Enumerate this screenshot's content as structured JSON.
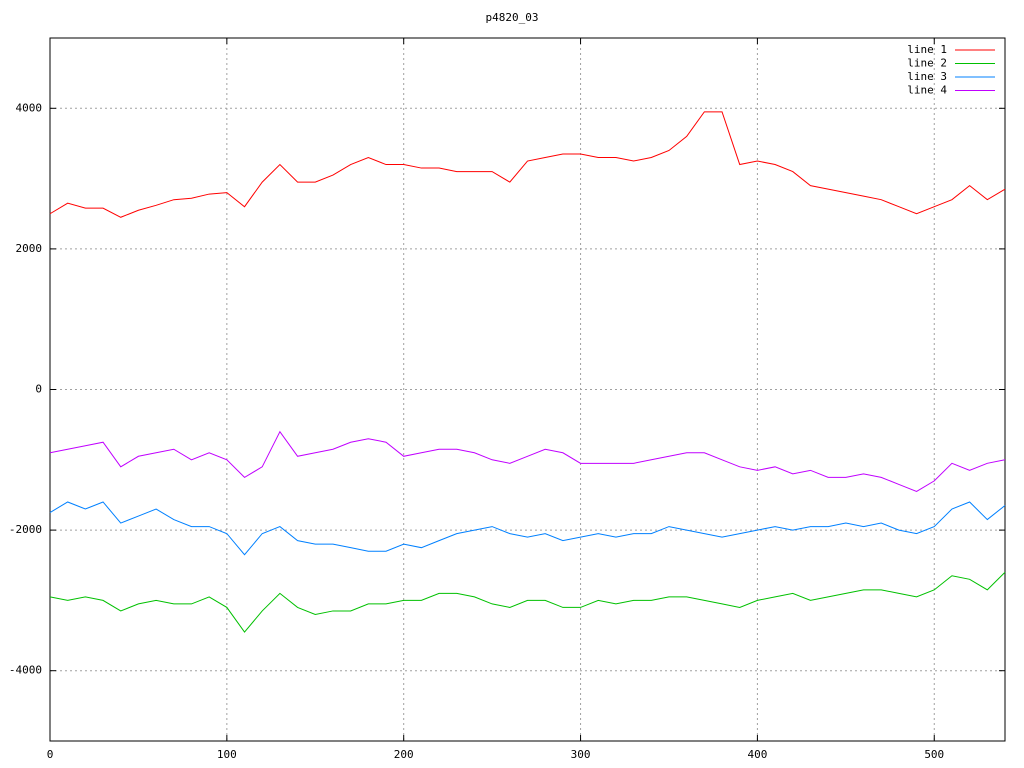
{
  "chart_data": {
    "type": "line",
    "title": "p4820_03",
    "x": [
      0,
      10,
      20,
      30,
      40,
      50,
      60,
      70,
      80,
      90,
      100,
      110,
      120,
      130,
      140,
      150,
      160,
      170,
      180,
      190,
      200,
      210,
      220,
      230,
      240,
      250,
      260,
      270,
      280,
      290,
      300,
      310,
      320,
      330,
      340,
      350,
      360,
      370,
      380,
      390,
      400,
      410,
      420,
      430,
      440,
      450,
      460,
      470,
      480,
      490,
      500,
      510,
      520,
      530,
      540
    ],
    "series": [
      {
        "name": "line 1",
        "color": "#ff0000",
        "values": [
          2500,
          2650,
          2580,
          2580,
          2450,
          2550,
          2620,
          2700,
          2720,
          2780,
          2800,
          2600,
          2950,
          3200,
          2950,
          2950,
          3050,
          3200,
          3300,
          3200,
          3200,
          3150,
          3150,
          3100,
          3100,
          3100,
          2950,
          3250,
          3300,
          3350,
          3350,
          3300,
          3300,
          3250,
          3300,
          3400,
          3600,
          3950,
          3950,
          3200,
          3250,
          3200,
          3100,
          2900,
          2850,
          2800,
          2750,
          2700,
          2600,
          2500,
          2600,
          2700,
          2900,
          2700,
          2850
        ]
      },
      {
        "name": "line 2",
        "color": "#00c000",
        "values": [
          -2950,
          -3000,
          -2950,
          -3000,
          -3150,
          -3050,
          -3000,
          -3050,
          -3050,
          -2950,
          -3100,
          -3450,
          -3150,
          -2900,
          -3100,
          -3200,
          -3150,
          -3150,
          -3050,
          -3050,
          -3000,
          -3000,
          -2900,
          -2900,
          -2950,
          -3050,
          -3100,
          -3000,
          -3000,
          -3100,
          -3100,
          -3000,
          -3050,
          -3000,
          -3000,
          -2950,
          -2950,
          -3000,
          -3050,
          -3100,
          -3000,
          -2950,
          -2900,
          -3000,
          -2950,
          -2900,
          -2850,
          -2850,
          -2900,
          -2950,
          -2850,
          -2650,
          -2700,
          -2850,
          -2600
        ]
      },
      {
        "name": "line 3",
        "color": "#0080ff",
        "values": [
          -1750,
          -1600,
          -1700,
          -1600,
          -1900,
          -1800,
          -1700,
          -1850,
          -1950,
          -1950,
          -2050,
          -2350,
          -2050,
          -1950,
          -2150,
          -2200,
          -2200,
          -2250,
          -2300,
          -2300,
          -2200,
          -2250,
          -2150,
          -2050,
          -2000,
          -1950,
          -2050,
          -2100,
          -2050,
          -2150,
          -2100,
          -2050,
          -2100,
          -2050,
          -2050,
          -1950,
          -2000,
          -2050,
          -2100,
          -2050,
          -2000,
          -1950,
          -2000,
          -1950,
          -1950,
          -1900,
          -1950,
          -1900,
          -2000,
          -2050,
          -1950,
          -1700,
          -1600,
          -1850,
          -1650
        ]
      },
      {
        "name": "line 4",
        "color": "#c000ff",
        "values": [
          -900,
          -850,
          -800,
          -750,
          -1100,
          -950,
          -900,
          -850,
          -1000,
          -900,
          -1000,
          -1250,
          -1100,
          -600,
          -950,
          -900,
          -850,
          -750,
          -700,
          -750,
          -950,
          -900,
          -850,
          -850,
          -900,
          -1000,
          -1050,
          -950,
          -850,
          -900,
          -1050,
          -1050,
          -1050,
          -1050,
          -1000,
          -950,
          -900,
          -900,
          -1000,
          -1100,
          -1150,
          -1100,
          -1200,
          -1150,
          -1250,
          -1250,
          -1200,
          -1250,
          -1350,
          -1450,
          -1300,
          -1050,
          -1150,
          -1050,
          -1000
        ]
      }
    ],
    "xlim": [
      0,
      540
    ],
    "xticks": [
      0,
      100,
      200,
      300,
      400,
      500
    ],
    "ylim": [
      -5000,
      5000
    ],
    "yticks": [
      -4000,
      -2000,
      0,
      2000,
      4000
    ],
    "grid": true,
    "legend": "top-right"
  }
}
